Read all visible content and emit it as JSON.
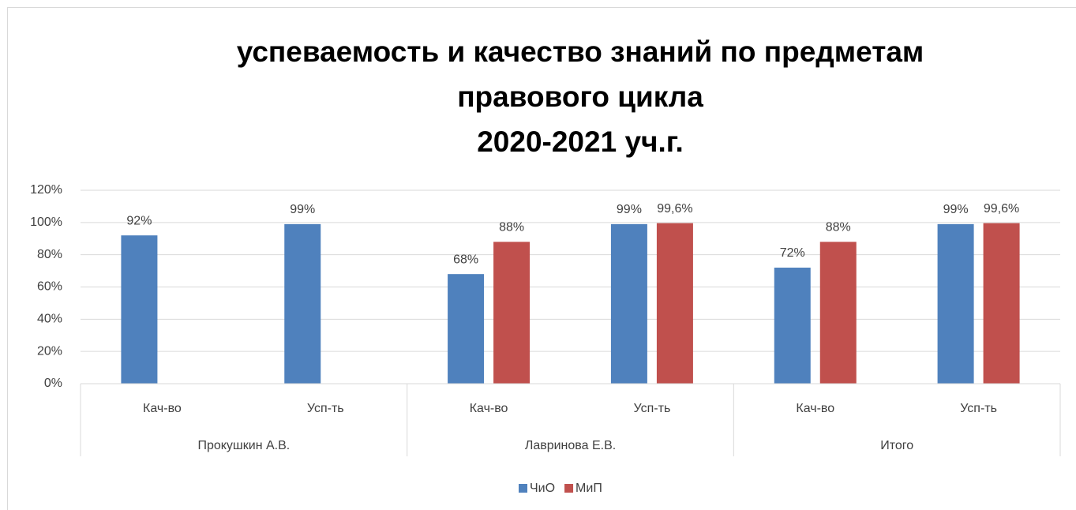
{
  "chart_data": {
    "type": "bar",
    "title": [
      "успеваемость и качество знаний по предметам",
      "правового цикла",
      "2020-2021 уч.г."
    ],
    "categories": [
      "Кач-во",
      "Усп-ть",
      "Кач-во",
      "Усп-ть",
      "Кач-во",
      "Усп-ть"
    ],
    "category_groups": [
      "Прокушкин А.В.",
      "Лавринова Е.В.",
      "Итого"
    ],
    "series": [
      {
        "name": "ЧиО",
        "color": "#4f81bd",
        "values": [
          92,
          99,
          68,
          99,
          72,
          99
        ],
        "value_labels": [
          "92%",
          "99%",
          "68%",
          "99%",
          "72%",
          "99%"
        ]
      },
      {
        "name": "МиП",
        "color": "#c0504d",
        "values": [
          null,
          null,
          88,
          99.6,
          88,
          99.6
        ],
        "value_labels": [
          null,
          null,
          "88%",
          "99,6%",
          "88%",
          "99,6%"
        ]
      }
    ],
    "ylim": [
      0,
      120
    ],
    "yticks": [
      {
        "value": 0,
        "label": "0%"
      },
      {
        "value": 20,
        "label": "20%"
      },
      {
        "value": 40,
        "label": "40%"
      },
      {
        "value": 60,
        "label": "60%"
      },
      {
        "value": 80,
        "label": "80%"
      },
      {
        "value": 100,
        "label": "100%"
      },
      {
        "value": 120,
        "label": "120%"
      }
    ],
    "grid": true,
    "legend": "bottom"
  }
}
